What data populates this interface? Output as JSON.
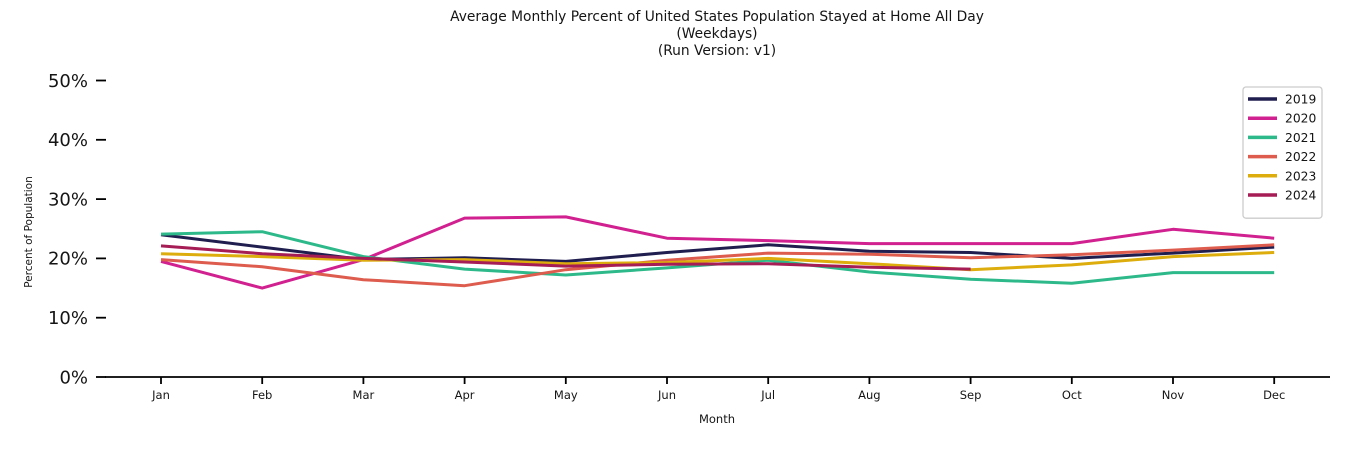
{
  "chart_data": {
    "type": "line",
    "title_lines": [
      "Average Monthly Percent of United States Population Stayed at Home All Day",
      "(Weekdays)",
      "(Run Version: v1)"
    ],
    "xlabel": "Month",
    "ylabel": "Percent of Population",
    "categories": [
      "Jan",
      "Feb",
      "Mar",
      "Apr",
      "May",
      "Jun",
      "Jul",
      "Aug",
      "Sep",
      "Oct",
      "Nov",
      "Dec"
    ],
    "y_ticks": [
      {
        "value": 0,
        "label": "0%"
      },
      {
        "value": 10,
        "label": "10%"
      },
      {
        "value": 20,
        "label": "20%"
      },
      {
        "value": 30,
        "label": "30%"
      },
      {
        "value": 40,
        "label": "40%"
      },
      {
        "value": 50,
        "label": "50%"
      }
    ],
    "ylim": [
      0,
      52
    ],
    "grid": false,
    "legend_position": "upper right",
    "series": [
      {
        "name": "2019",
        "color": "#201e4f",
        "values": [
          24.0,
          21.9,
          19.8,
          20.1,
          19.5,
          21.0,
          22.3,
          21.2,
          21.0,
          20.0,
          20.9,
          21.9
        ]
      },
      {
        "name": "2020",
        "color": "#d1208f",
        "values": [
          19.5,
          15.0,
          19.8,
          26.8,
          27.0,
          23.4,
          23.0,
          22.5,
          22.5,
          22.5,
          24.9,
          23.4
        ]
      },
      {
        "name": "2021",
        "color": "#2eb98a",
        "values": [
          24.1,
          24.5,
          20.3,
          18.2,
          17.2,
          18.4,
          19.7,
          17.7,
          16.5,
          15.8,
          17.6,
          17.6
        ]
      },
      {
        "name": "2022",
        "color": "#dd5c4e",
        "values": [
          19.8,
          18.6,
          16.4,
          15.4,
          18.1,
          19.7,
          20.9,
          20.7,
          20.1,
          20.6,
          21.4,
          22.3
        ]
      },
      {
        "name": "2023",
        "color": "#ddad0d",
        "values": [
          20.8,
          20.3,
          19.7,
          19.8,
          19.1,
          19.3,
          20.0,
          19.1,
          18.1,
          18.9,
          20.3,
          21.0
        ]
      },
      {
        "name": "2024",
        "color": "#a61c55",
        "values": [
          22.1,
          20.8,
          20.0,
          19.4,
          18.7,
          19.0,
          19.1,
          18.5,
          18.2,
          null,
          null,
          null
        ]
      }
    ],
    "axis_color": "#000000",
    "legend_border_color": "#cccccc"
  }
}
